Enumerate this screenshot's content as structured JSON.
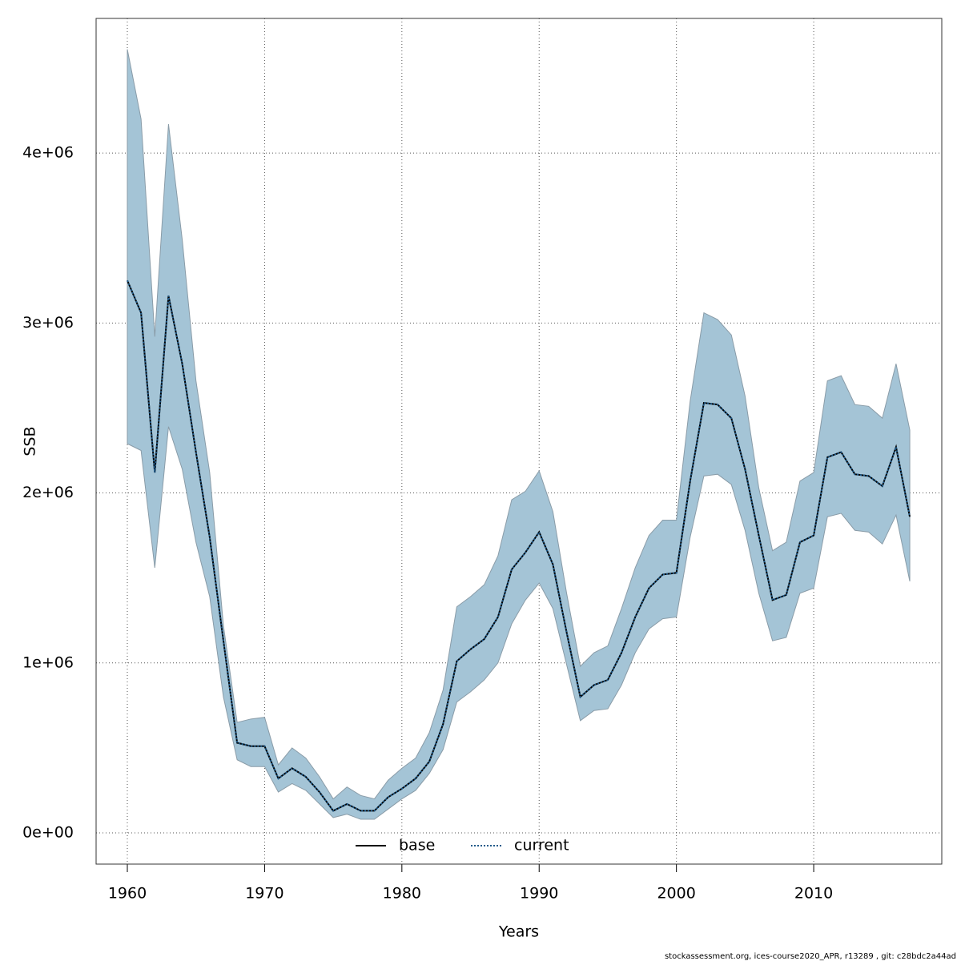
{
  "chart_data": {
    "type": "line",
    "x_label": "Years",
    "y_label": "SSB",
    "footnote": "stockassessment.org, ices-course2020_APR, r13289 , git: c28bdc2a44ad",
    "x": [
      1960,
      1961,
      1962,
      1963,
      1964,
      1965,
      1966,
      1967,
      1968,
      1969,
      1970,
      1971,
      1972,
      1973,
      1974,
      1975,
      1976,
      1977,
      1978,
      1979,
      1980,
      1981,
      1982,
      1983,
      1984,
      1985,
      1986,
      1987,
      1988,
      1989,
      1990,
      1991,
      1992,
      1993,
      1994,
      1995,
      1996,
      1997,
      1998,
      1999,
      2000,
      2001,
      2002,
      2003,
      2004,
      2005,
      2006,
      2007,
      2008,
      2009,
      2010,
      2011,
      2012,
      2013,
      2014,
      2015,
      2016,
      2017
    ],
    "series": [
      {
        "name": "base",
        "color": "#000000",
        "dash": "solid",
        "values": [
          3250000,
          3060000,
          2120000,
          3160000,
          2760000,
          2240000,
          1740000,
          1130000,
          530000,
          510000,
          510000,
          320000,
          380000,
          330000,
          240000,
          130000,
          170000,
          130000,
          130000,
          210000,
          260000,
          320000,
          420000,
          640000,
          1010000,
          1080000,
          1140000,
          1270000,
          1550000,
          1650000,
          1770000,
          1580000,
          1180000,
          800000,
          870000,
          900000,
          1060000,
          1270000,
          1440000,
          1520000,
          1530000,
          2070000,
          2530000,
          2520000,
          2440000,
          2140000,
          1750000,
          1370000,
          1400000,
          1710000,
          1750000,
          2210000,
          2240000,
          2110000,
          2100000,
          2040000,
          2270000,
          1860000
        ]
      },
      {
        "name": "current",
        "color": "#1f5a8a",
        "dash": "dotted",
        "values": [
          3250000,
          3060000,
          2120000,
          3160000,
          2760000,
          2240000,
          1740000,
          1130000,
          530000,
          510000,
          510000,
          320000,
          380000,
          330000,
          240000,
          130000,
          170000,
          130000,
          130000,
          210000,
          260000,
          320000,
          420000,
          640000,
          1010000,
          1080000,
          1140000,
          1270000,
          1550000,
          1650000,
          1770000,
          1580000,
          1180000,
          800000,
          870000,
          900000,
          1060000,
          1270000,
          1440000,
          1520000,
          1530000,
          2070000,
          2530000,
          2520000,
          2440000,
          2140000,
          1750000,
          1370000,
          1400000,
          1710000,
          1750000,
          2210000,
          2240000,
          2110000,
          2100000,
          2040000,
          2270000,
          1860000
        ]
      }
    ],
    "band": {
      "color": "#a4c4d6",
      "low": [
        2290000,
        2250000,
        1560000,
        2390000,
        2140000,
        1710000,
        1390000,
        800000,
        430000,
        390000,
        390000,
        240000,
        290000,
        250000,
        170000,
        90000,
        110000,
        80000,
        80000,
        140000,
        200000,
        250000,
        350000,
        490000,
        770000,
        830000,
        900000,
        1000000,
        1230000,
        1370000,
        1470000,
        1320000,
        990000,
        660000,
        720000,
        730000,
        870000,
        1060000,
        1200000,
        1260000,
        1270000,
        1740000,
        2100000,
        2110000,
        2050000,
        1780000,
        1410000,
        1130000,
        1150000,
        1410000,
        1440000,
        1860000,
        1880000,
        1780000,
        1770000,
        1700000,
        1870000,
        1480000
      ],
      "high": [
        4610000,
        4200000,
        2920000,
        4170000,
        3490000,
        2660000,
        2120000,
        1220000,
        650000,
        670000,
        680000,
        400000,
        500000,
        440000,
        330000,
        200000,
        270000,
        220000,
        200000,
        310000,
        380000,
        440000,
        590000,
        840000,
        1330000,
        1390000,
        1460000,
        1630000,
        1960000,
        2010000,
        2130000,
        1890000,
        1410000,
        980000,
        1060000,
        1100000,
        1320000,
        1560000,
        1750000,
        1840000,
        1840000,
        2540000,
        3060000,
        3020000,
        2930000,
        2570000,
        2030000,
        1660000,
        1710000,
        2070000,
        2120000,
        2660000,
        2690000,
        2520000,
        2510000,
        2440000,
        2760000,
        2370000
      ]
    },
    "xlim": [
      1957.725,
      2019.33
    ],
    "ylim": [
      -183700,
      4792000
    ],
    "xticks": [
      1960,
      1970,
      1980,
      1990,
      2000,
      2010
    ],
    "yticks": [
      {
        "value": 0,
        "label": "0e+00"
      },
      {
        "value": 1000000,
        "label": "1e+06"
      },
      {
        "value": 2000000,
        "label": "2e+06"
      },
      {
        "value": 3000000,
        "label": "3e+06"
      },
      {
        "value": 4000000,
        "label": "4e+06"
      }
    ],
    "grid": true,
    "legend": "bottom"
  }
}
